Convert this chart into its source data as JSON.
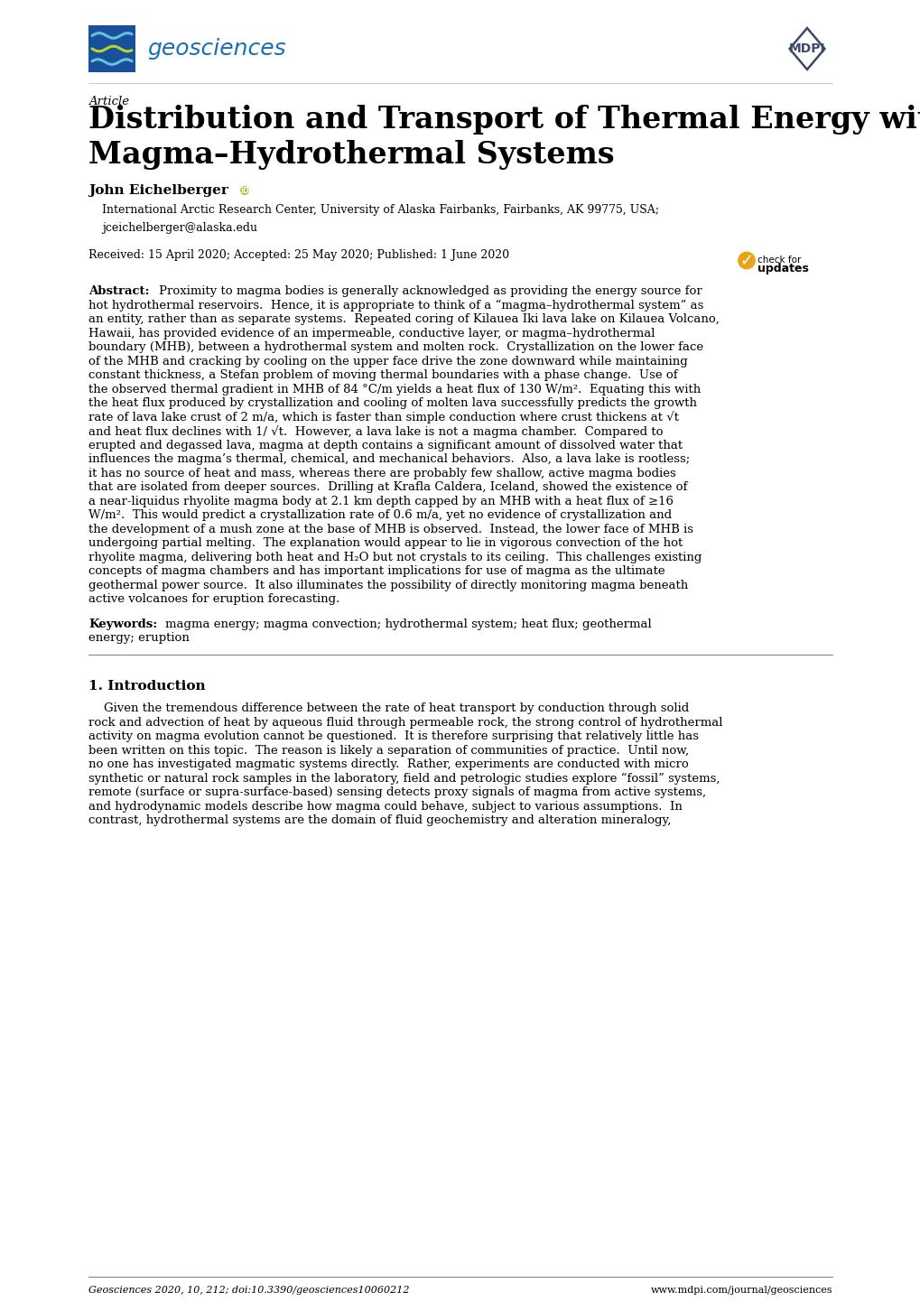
{
  "page_width": 10.2,
  "page_height": 14.42,
  "bg_color": "#ffffff",
  "ml": 0.98,
  "mr_val": 9.22,
  "journal_name": "geosciences",
  "journal_color": "#1a6eb5",
  "logo_blue": "#1a4f9c",
  "mdpi_color": "#3d4a6b",
  "text_color": "#000000",
  "abstract_lines": [
    "Proximity to magma bodies is generally acknowledged as providing the energy source for",
    "hot hydrothermal reservoirs.  Hence, it is appropriate to think of a “magma–hydrothermal system” as",
    "an entity, rather than as separate systems.  Repeated coring of Kilauea Iki lava lake on Kilauea Volcano,",
    "Hawaii, has provided evidence of an impermeable, conductive layer, or magma–hydrothermal",
    "boundary (MHB), between a hydrothermal system and molten rock.  Crystallization on the lower face",
    "of the MHB and cracking by cooling on the upper face drive the zone downward while maintaining",
    "constant thickness, a Stefan problem of moving thermal boundaries with a phase change.  Use of",
    "the observed thermal gradient in MHB of 84 °C/m yields a heat flux of 130 W/m².  Equating this with",
    "the heat flux produced by crystallization and cooling of molten lava successfully predicts the growth",
    "rate of lava lake crust of 2 m/a, which is faster than simple conduction where crust thickens at √t",
    "and heat flux declines with 1/ √t.  However, a lava lake is not a magma chamber.  Compared to",
    "erupted and degassed lava, magma at depth contains a significant amount of dissolved water that",
    "influences the magma’s thermal, chemical, and mechanical behaviors.  Also, a lava lake is rootless;",
    "it has no source of heat and mass, whereas there are probably few shallow, active magma bodies",
    "that are isolated from deeper sources.  Drilling at Krafla Caldera, Iceland, showed the existence of",
    "a near-liquidus rhyolite magma body at 2.1 km depth capped by an MHB with a heat flux of ≥16",
    "W/m².  This would predict a crystallization rate of 0.6 m/a, yet no evidence of crystallization and",
    "the development of a mush zone at the base of MHB is observed.  Instead, the lower face of MHB is",
    "undergoing partial melting.  The explanation would appear to lie in vigorous convection of the hot",
    "rhyolite magma, delivering both heat and H₂O but not crystals to its ceiling.  This challenges existing",
    "concepts of magma chambers and has important implications for use of magma as the ultimate",
    "geothermal power source.  It also illuminates the possibility of directly monitoring magma beneath",
    "active volcanoes for eruption forecasting."
  ],
  "intro_lines": [
    "    Given the tremendous difference between the rate of heat transport by conduction through solid",
    "rock and advection of heat by aqueous fluid through permeable rock, the strong control of hydrothermal",
    "activity on magma evolution cannot be questioned.  It is therefore surprising that relatively little has",
    "been written on this topic.  The reason is likely a separation of communities of practice.  Until now,",
    "no one has investigated magmatic systems directly.  Rather, experiments are conducted with micro",
    "synthetic or natural rock samples in the laboratory, field and petrologic studies explore “fossil” systems,",
    "remote (surface or supra-surface-based) sensing detects proxy signals of magma from active systems,",
    "and hydrodynamic models describe how magma could behave, subject to various assumptions.  In",
    "contrast, hydrothermal systems are the domain of fluid geochemistry and alteration mineralogy,"
  ]
}
